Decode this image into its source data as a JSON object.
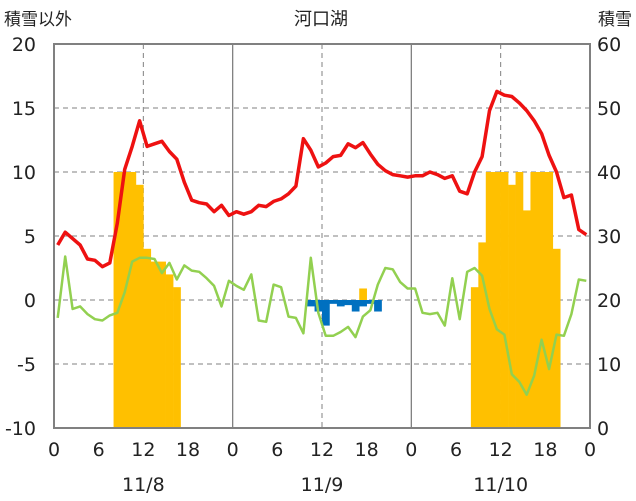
{
  "chart_data": {
    "type": "line",
    "title": "河口湖",
    "left_axis_label": "積雪以外",
    "right_axis_label": "積雪",
    "ylim_left": [
      -10,
      20
    ],
    "yticks_left": [
      "20",
      "15",
      "10",
      "5",
      "0",
      "-5",
      "-10"
    ],
    "ylim_right": [
      0,
      60
    ],
    "yticks_right": [
      "60",
      "50",
      "40",
      "30",
      "20",
      "10",
      "0"
    ],
    "x_tick_labels": [
      "0",
      "6",
      "12",
      "18",
      "0",
      "6",
      "12",
      "18",
      "0",
      "6",
      "12",
      "18",
      "0"
    ],
    "date_labels": [
      "11/8",
      "11/9",
      "11/10"
    ],
    "grid": "dashed vertical at 12h, solid at day boundaries, dashed horizontal",
    "colors": {
      "red_series": "#ee1111",
      "green_series": "#92d050",
      "orange_bars": "#ffc000",
      "blue_bars": "#0070c0",
      "frame": "#808080",
      "grid": "#808080"
    },
    "series": [
      {
        "color_key": "red_series",
        "axis": "left",
        "x": [
          0,
          1,
          2,
          3,
          4,
          5,
          6,
          7,
          8,
          9,
          10,
          11,
          12,
          13,
          14,
          15,
          16,
          17,
          18,
          19,
          20,
          21,
          22,
          23,
          24,
          25,
          26,
          27,
          28,
          29,
          30,
          31,
          32,
          33,
          34,
          35,
          36,
          37,
          38,
          39,
          40,
          41,
          42,
          43,
          44,
          45,
          46,
          47,
          48,
          49,
          50,
          51,
          52,
          53,
          54,
          55,
          56,
          57,
          58,
          59,
          60,
          61,
          62,
          63,
          64,
          65,
          66,
          67,
          68,
          69,
          70,
          71
        ],
        "values": [
          4.3,
          5.3,
          4.8,
          4.3,
          3.2,
          3.1,
          2.6,
          2.9,
          6.0,
          10.2,
          12.0,
          14.0,
          12.0,
          12.2,
          12.4,
          11.6,
          11.0,
          9.2,
          7.8,
          7.6,
          7.5,
          6.9,
          7.4,
          6.6,
          6.9,
          6.7,
          6.9,
          7.4,
          7.3,
          7.7,
          7.9,
          8.3,
          8.9,
          12.6,
          11.7,
          10.4,
          10.7,
          11.2,
          11.3,
          12.2,
          11.9,
          12.3,
          11.4,
          10.6,
          10.1,
          9.8,
          9.7,
          9.6,
          9.7,
          9.7,
          10.0,
          9.8,
          9.5,
          9.7,
          8.5,
          8.3,
          10.0,
          11.2,
          14.8,
          16.3,
          16.0,
          15.9,
          15.4,
          14.8,
          14.0,
          13.0,
          11.3,
          10.0,
          8.0,
          8.2,
          5.5,
          5.1
        ]
      },
      {
        "color_key": "green_series",
        "axis": "left",
        "x": [
          0,
          1,
          2,
          3,
          4,
          5,
          6,
          7,
          8,
          9,
          10,
          11,
          12,
          13,
          14,
          15,
          16,
          17,
          18,
          19,
          20,
          21,
          22,
          23,
          24,
          25,
          26,
          27,
          28,
          29,
          30,
          31,
          32,
          33,
          34,
          35,
          36,
          37,
          38,
          39,
          40,
          41,
          42,
          43,
          44,
          45,
          46,
          47,
          48,
          49,
          50,
          51,
          52,
          53,
          54,
          55,
          56,
          57,
          58,
          59,
          60,
          61,
          62,
          63,
          64,
          65,
          66,
          67,
          68,
          69,
          70,
          71
        ],
        "values": [
          -1.4,
          3.4,
          -0.7,
          -0.5,
          -1.1,
          -1.5,
          -1.6,
          -1.2,
          -1.0,
          0.6,
          3.0,
          3.3,
          3.3,
          3.2,
          2.1,
          2.9,
          1.6,
          2.7,
          2.3,
          2.2,
          1.7,
          1.1,
          -0.5,
          1.5,
          1.1,
          0.8,
          2.0,
          -1.6,
          -1.7,
          1.2,
          1.0,
          -1.3,
          -1.4,
          -2.6,
          3.3,
          -1.0,
          -2.8,
          -2.8,
          -2.5,
          -2.1,
          -2.9,
          -1.3,
          -0.8,
          1.2,
          2.5,
          2.4,
          1.4,
          0.9,
          0.9,
          -1.0,
          -1.1,
          -1.0,
          -2.0,
          1.7,
          -1.5,
          2.2,
          2.5,
          1.9,
          -0.7,
          -2.3,
          -2.7,
          -5.8,
          -6.4,
          -7.4,
          -5.9,
          -3.1,
          -5.4,
          -2.7,
          -2.8,
          -1.1,
          1.6,
          1.5
        ]
      },
      {
        "color_key": "orange_bars",
        "axis": "right",
        "type": "bar",
        "x": [
          8,
          9,
          10,
          11,
          12,
          13,
          14,
          15,
          16,
          56,
          57,
          58,
          59,
          60,
          61,
          62,
          63,
          64,
          65,
          66,
          67
        ],
        "values": [
          40,
          40,
          40,
          38,
          28,
          26,
          26,
          24,
          22,
          22,
          29,
          40,
          40,
          40,
          38,
          40,
          34,
          40,
          40,
          40,
          28
        ]
      },
      {
        "color_key": "blue_bars",
        "axis": "left",
        "type": "bar",
        "x": [
          34,
          35,
          36,
          37,
          38,
          39,
          40,
          41,
          42,
          43
        ],
        "values": [
          -0.5,
          -0.9,
          -2.0,
          -0.3,
          -0.5,
          -0.4,
          -0.9,
          -0.5,
          -0.3,
          -0.9
        ]
      },
      {
        "color_key": "orange_bars",
        "axis": "left",
        "type": "bar",
        "x": [
          41
        ],
        "values": [
          0.9
        ]
      }
    ]
  }
}
